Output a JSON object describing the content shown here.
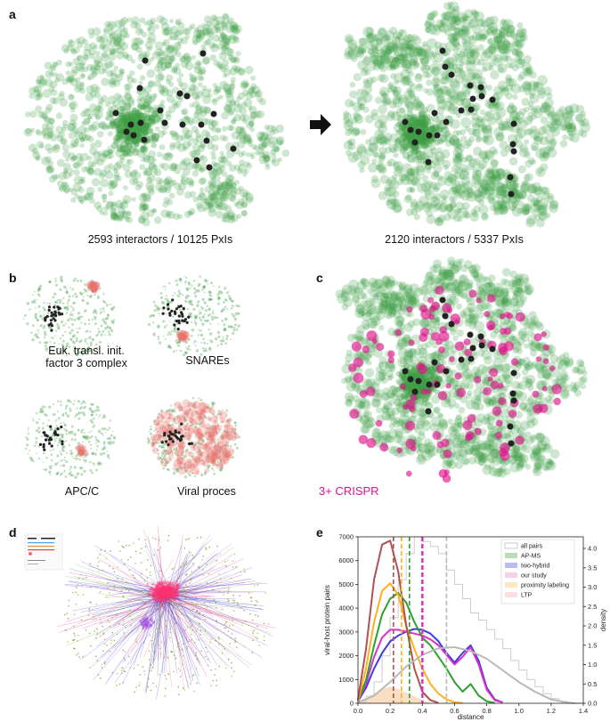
{
  "panels": {
    "a": {
      "letter": "a",
      "left_caption": "2593 interactors / 10125 PxIs",
      "right_caption": "2120 interactors / 5337 PxIs"
    },
    "b": {
      "letter": "b",
      "captions": [
        "Euk. transl. init.\nfactor 3 complex",
        "SNAREs",
        "APC/C",
        "Viral proces"
      ]
    },
    "c": {
      "letter": "c",
      "label": "3+ CRISPR"
    },
    "d": {
      "letter": "d"
    },
    "e": {
      "letter": "e"
    }
  },
  "colors": {
    "green_node": "#3f9f46",
    "dark_node": "#222222",
    "red_node": "#e8736c",
    "magenta_node": "#e0148c"
  },
  "chart_data": {
    "type": "line",
    "xlabel": "distance",
    "ylabel_left": "viral-host protein pairs",
    "ylabel_right": "density",
    "xlim": [
      0.0,
      1.4
    ],
    "ylim_left": [
      0,
      7000
    ],
    "ylim_right": [
      0,
      4.3
    ],
    "x_ticks": [
      "0.0",
      "0.2",
      "0.4",
      "0.6",
      "0.8",
      "1.0",
      "1.2",
      "1.4"
    ],
    "y_ticks_left": [
      "0",
      "1000",
      "2000",
      "3000",
      "4000",
      "5000",
      "6000",
      "7000"
    ],
    "y_ticks_right": [
      "0.0",
      "0.5",
      "1.0",
      "1.5",
      "2.0",
      "2.5",
      "3.0",
      "3.5",
      "4.0"
    ],
    "legend_placement": "top-right",
    "legend": [
      {
        "label": "all pairs",
        "color": "#c8c8c8"
      },
      {
        "label": "AP-MS",
        "color": "#2ca02c"
      },
      {
        "label": "two-hybrid",
        "color": "#3b3be0"
      },
      {
        "label": "our study",
        "color": "#e377c2"
      },
      {
        "label": "proximity labeling",
        "color": "#ffb84d"
      },
      {
        "label": "LTP",
        "color": "#ff9fb0"
      }
    ],
    "series": [
      {
        "name": "two-hybrid",
        "color": "#3b3be0",
        "x": [
          0.0,
          0.05,
          0.1,
          0.15,
          0.2,
          0.25,
          0.3,
          0.35,
          0.4,
          0.45,
          0.5,
          0.55,
          0.6,
          0.65,
          0.7,
          0.75,
          0.8,
          0.85,
          0.9
        ],
        "y": [
          0.05,
          0.4,
          0.9,
          1.3,
          1.6,
          1.75,
          1.85,
          1.92,
          1.9,
          1.8,
          1.6,
          1.3,
          1.05,
          1.3,
          1.5,
          1.1,
          0.4,
          0.1,
          0.02
        ]
      },
      {
        "name": "our study",
        "color": "#e030c8",
        "x": [
          0.0,
          0.05,
          0.1,
          0.15,
          0.2,
          0.25,
          0.3,
          0.35,
          0.4,
          0.45,
          0.5,
          0.55,
          0.6,
          0.65,
          0.7,
          0.75,
          0.8,
          0.85,
          0.9
        ],
        "y": [
          0.05,
          0.5,
          1.2,
          1.7,
          1.9,
          1.9,
          1.85,
          1.8,
          1.75,
          1.65,
          1.5,
          1.25,
          1.0,
          1.2,
          1.45,
          1.0,
          0.35,
          0.08,
          0.02
        ]
      },
      {
        "name": "AP-MS",
        "color": "#2ca02c",
        "x": [
          0.0,
          0.05,
          0.1,
          0.15,
          0.2,
          0.25,
          0.3,
          0.35,
          0.4,
          0.45,
          0.5,
          0.55,
          0.6,
          0.65,
          0.7,
          0.75,
          0.8,
          0.85
        ],
        "y": [
          0.05,
          0.6,
          1.5,
          2.3,
          2.7,
          2.85,
          2.6,
          2.1,
          1.7,
          1.5,
          1.2,
          0.9,
          0.55,
          0.3,
          0.5,
          0.2,
          0.05,
          0.01
        ]
      },
      {
        "name": "proximity labeling",
        "color": "#ffb020",
        "x": [
          0.0,
          0.05,
          0.1,
          0.15,
          0.2,
          0.25,
          0.3,
          0.35,
          0.4,
          0.45,
          0.5,
          0.55,
          0.6,
          0.65
        ],
        "y": [
          0.05,
          0.9,
          2.1,
          2.9,
          3.1,
          2.8,
          2.0,
          1.4,
          0.9,
          0.5,
          0.25,
          0.1,
          0.03,
          0.01
        ]
      },
      {
        "name": "LTP",
        "color": "#b05050",
        "x": [
          0.0,
          0.05,
          0.1,
          0.15,
          0.2,
          0.25,
          0.3,
          0.35,
          0.4,
          0.45,
          0.5
        ],
        "y": [
          0.1,
          1.4,
          3.2,
          4.1,
          4.2,
          3.4,
          2.0,
          0.9,
          0.3,
          0.08,
          0.01
        ]
      },
      {
        "name": "all pairs",
        "color": "#b8b8b8",
        "x": [
          0.0,
          0.1,
          0.2,
          0.3,
          0.4,
          0.5,
          0.6,
          0.7,
          0.8,
          0.9,
          1.0,
          1.1,
          1.2,
          1.3,
          1.35
        ],
        "y": [
          0.02,
          0.2,
          0.55,
          0.95,
          1.25,
          1.42,
          1.45,
          1.35,
          1.15,
          0.85,
          0.55,
          0.3,
          0.1,
          0.02,
          0.0
        ]
      }
    ],
    "vlines": [
      {
        "x": 0.22,
        "color": "#b05050"
      },
      {
        "x": 0.27,
        "color": "#ffb020"
      },
      {
        "x": 0.32,
        "color": "#2ca02c"
      },
      {
        "x": 0.4,
        "color": "#e030c8"
      },
      {
        "x": 0.55,
        "color": "#b8b8b8"
      }
    ],
    "hist_all_pairs": {
      "color": "#cccccc",
      "edges": [
        0.0,
        0.05,
        0.1,
        0.15,
        0.2,
        0.25,
        0.3,
        0.35,
        0.4,
        0.45,
        0.5,
        0.55,
        0.6,
        0.65,
        0.7,
        0.75,
        0.8,
        0.85,
        0.9,
        0.95,
        1.0,
        1.05,
        1.1,
        1.15,
        1.2,
        1.25,
        1.3,
        1.35
      ],
      "counts": [
        50,
        300,
        900,
        2000,
        3600,
        5200,
        6300,
        7000,
        6800,
        6600,
        6300,
        5600,
        5000,
        4400,
        3800,
        3500,
        3100,
        2700,
        2300,
        1800,
        1400,
        1000,
        700,
        400,
        200,
        80,
        20
      ]
    }
  }
}
